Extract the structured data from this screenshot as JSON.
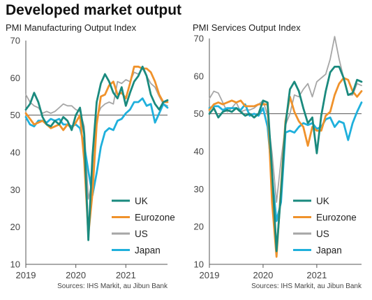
{
  "title": "Developed market output",
  "colors": {
    "UK": "#1a8a7e",
    "Eurozone": "#f0922b",
    "US": "#a6a6a6",
    "Japan": "#1fb0dc",
    "axis": "#555555"
  },
  "chart_data": [
    {
      "type": "line",
      "title": "PMI Manufacturing Output Index",
      "source": "Sources: IHS Markit, au Jibun Bank",
      "ylim": [
        10,
        70
      ],
      "yticks": [
        "10",
        "20",
        "30",
        "40",
        "50",
        "60",
        "70"
      ],
      "xlim": [
        "2019-01",
        "2021-11"
      ],
      "xticks": [
        {
          "label": "2019",
          "x": "2019-01"
        },
        {
          "label": "2020",
          "x": "2020-01"
        },
        {
          "label": "2021",
          "x": "2021-01"
        }
      ],
      "reference_line": 50,
      "legend_position": "bottom-right",
      "x": [
        "2019-01",
        "2019-02",
        "2019-03",
        "2019-04",
        "2019-05",
        "2019-06",
        "2019-07",
        "2019-08",
        "2019-09",
        "2019-10",
        "2019-11",
        "2019-12",
        "2020-01",
        "2020-02",
        "2020-03",
        "2020-04",
        "2020-05",
        "2020-06",
        "2020-07",
        "2020-08",
        "2020-09",
        "2020-10",
        "2020-11",
        "2020-12",
        "2021-01",
        "2021-02",
        "2021-03",
        "2021-04",
        "2021-05",
        "2021-06",
        "2021-07",
        "2021-08",
        "2021-09",
        "2021-10",
        "2021-11"
      ],
      "series": [
        {
          "name": "UK",
          "values": [
            51.5,
            53.0,
            56.0,
            53.5,
            49.5,
            47.5,
            47.0,
            48.5,
            47.5,
            49.5,
            48.5,
            46.0,
            50.0,
            52.0,
            45.0,
            16.5,
            39.0,
            53.5,
            58.5,
            61.0,
            59.0,
            56.0,
            54.5,
            57.5,
            52.5,
            56.0,
            59.0,
            60.5,
            63.0,
            60.5,
            55.5,
            53.0,
            51.5,
            53.5,
            54.0
          ]
        },
        {
          "name": "Eurozone",
          "values": [
            50.5,
            49.0,
            47.5,
            48.0,
            48.5,
            47.5,
            46.5,
            47.0,
            47.5,
            46.0,
            47.5,
            46.5,
            48.0,
            50.0,
            38.0,
            18.0,
            29.0,
            47.5,
            55.0,
            55.5,
            58.0,
            59.0,
            55.5,
            56.0,
            54.5,
            58.5,
            63.0,
            63.0,
            62.5,
            62.5,
            61.5,
            59.0,
            55.5,
            53.5,
            53.5
          ]
        },
        {
          "name": "US",
          "values": [
            55.5,
            53.5,
            52.5,
            52.0,
            50.5,
            51.0,
            50.5,
            51.0,
            52.0,
            53.0,
            52.5,
            52.5,
            51.5,
            51.0,
            47.0,
            27.5,
            32.5,
            49.5,
            52.0,
            53.0,
            53.5,
            53.0,
            59.0,
            58.5,
            59.5,
            59.0,
            61.5,
            61.0,
            62.5,
            60.5,
            58.5,
            57.5,
            55.0,
            53.0,
            52.5
          ]
        },
        {
          "name": "Japan",
          "values": [
            49.5,
            47.5,
            47.0,
            48.5,
            48.5,
            48.0,
            49.0,
            48.5,
            49.0,
            47.5,
            47.5,
            47.0,
            47.5,
            46.5,
            42.0,
            35.0,
            28.5,
            34.5,
            41.5,
            45.5,
            46.5,
            46.0,
            48.5,
            49.0,
            50.5,
            51.5,
            53.5,
            53.5,
            54.5,
            52.5,
            53.0,
            48.0,
            50.5,
            53.0,
            52.0
          ]
        }
      ]
    },
    {
      "type": "line",
      "title": "PMI Services Output Index",
      "source": "Sources: IHS Markit, au Jibun Bank",
      "ylim": [
        10,
        70
      ],
      "yticks": [
        "10",
        "20",
        "30",
        "40",
        "50",
        "60",
        "70"
      ],
      "xlim": [
        "2019-01",
        "2021-11"
      ],
      "xticks": [
        {
          "label": "2019",
          "x": "2019-01"
        },
        {
          "label": "2020",
          "x": "2020-01"
        },
        {
          "label": "2021",
          "x": "2021-01"
        }
      ],
      "reference_line": 50,
      "legend_position": "bottom-right",
      "x": [
        "2019-01",
        "2019-02",
        "2019-03",
        "2019-04",
        "2019-05",
        "2019-06",
        "2019-07",
        "2019-08",
        "2019-09",
        "2019-10",
        "2019-11",
        "2019-12",
        "2020-01",
        "2020-02",
        "2020-03",
        "2020-04",
        "2020-05",
        "2020-06",
        "2020-07",
        "2020-08",
        "2020-09",
        "2020-10",
        "2020-11",
        "2020-12",
        "2021-01",
        "2021-02",
        "2021-03",
        "2021-04",
        "2021-05",
        "2021-06",
        "2021-07",
        "2021-08",
        "2021-09",
        "2021-10",
        "2021-11"
      ],
      "series": [
        {
          "name": "UK",
          "values": [
            50.0,
            51.5,
            49.0,
            50.5,
            51.0,
            50.5,
            51.5,
            50.5,
            49.5,
            50.0,
            49.0,
            50.0,
            53.5,
            53.0,
            34.5,
            13.5,
            29.0,
            47.0,
            56.5,
            58.5,
            56.0,
            51.5,
            47.5,
            49.0,
            39.5,
            49.5,
            56.0,
            61.0,
            62.5,
            62.5,
            59.5,
            55.0,
            55.5,
            59.0,
            58.5
          ]
        },
        {
          "name": "Eurozone",
          "values": [
            51.0,
            52.5,
            53.0,
            52.5,
            53.0,
            53.5,
            53.0,
            53.5,
            52.0,
            52.0,
            52.0,
            52.5,
            52.5,
            52.5,
            26.5,
            12.0,
            30.5,
            48.0,
            54.5,
            50.5,
            48.0,
            46.5,
            41.5,
            46.5,
            45.5,
            45.5,
            49.5,
            50.5,
            55.0,
            58.0,
            59.5,
            59.0,
            56.0,
            54.5,
            56.0
          ]
        },
        {
          "name": "US",
          "values": [
            54.0,
            56.0,
            55.5,
            53.0,
            50.5,
            51.5,
            53.0,
            50.5,
            51.0,
            51.0,
            51.5,
            52.5,
            53.5,
            49.5,
            39.5,
            26.5,
            37.5,
            47.0,
            50.0,
            55.0,
            54.5,
            56.5,
            58.0,
            54.5,
            58.5,
            59.5,
            60.5,
            64.5,
            70.5,
            64.5,
            59.5,
            55.0,
            55.0,
            58.0,
            57.5
          ]
        },
        {
          "name": "Japan",
          "values": [
            51.5,
            52.0,
            52.0,
            51.0,
            51.5,
            51.5,
            51.5,
            51.0,
            52.5,
            49.5,
            50.0,
            49.5,
            51.5,
            46.5,
            33.5,
            21.5,
            26.5,
            45.0,
            45.5,
            45.0,
            46.5,
            47.5,
            47.0,
            47.5,
            46.0,
            46.5,
            48.5,
            49.0,
            46.5,
            48.0,
            47.5,
            43.0,
            47.5,
            50.5,
            53.0
          ]
        }
      ]
    }
  ]
}
